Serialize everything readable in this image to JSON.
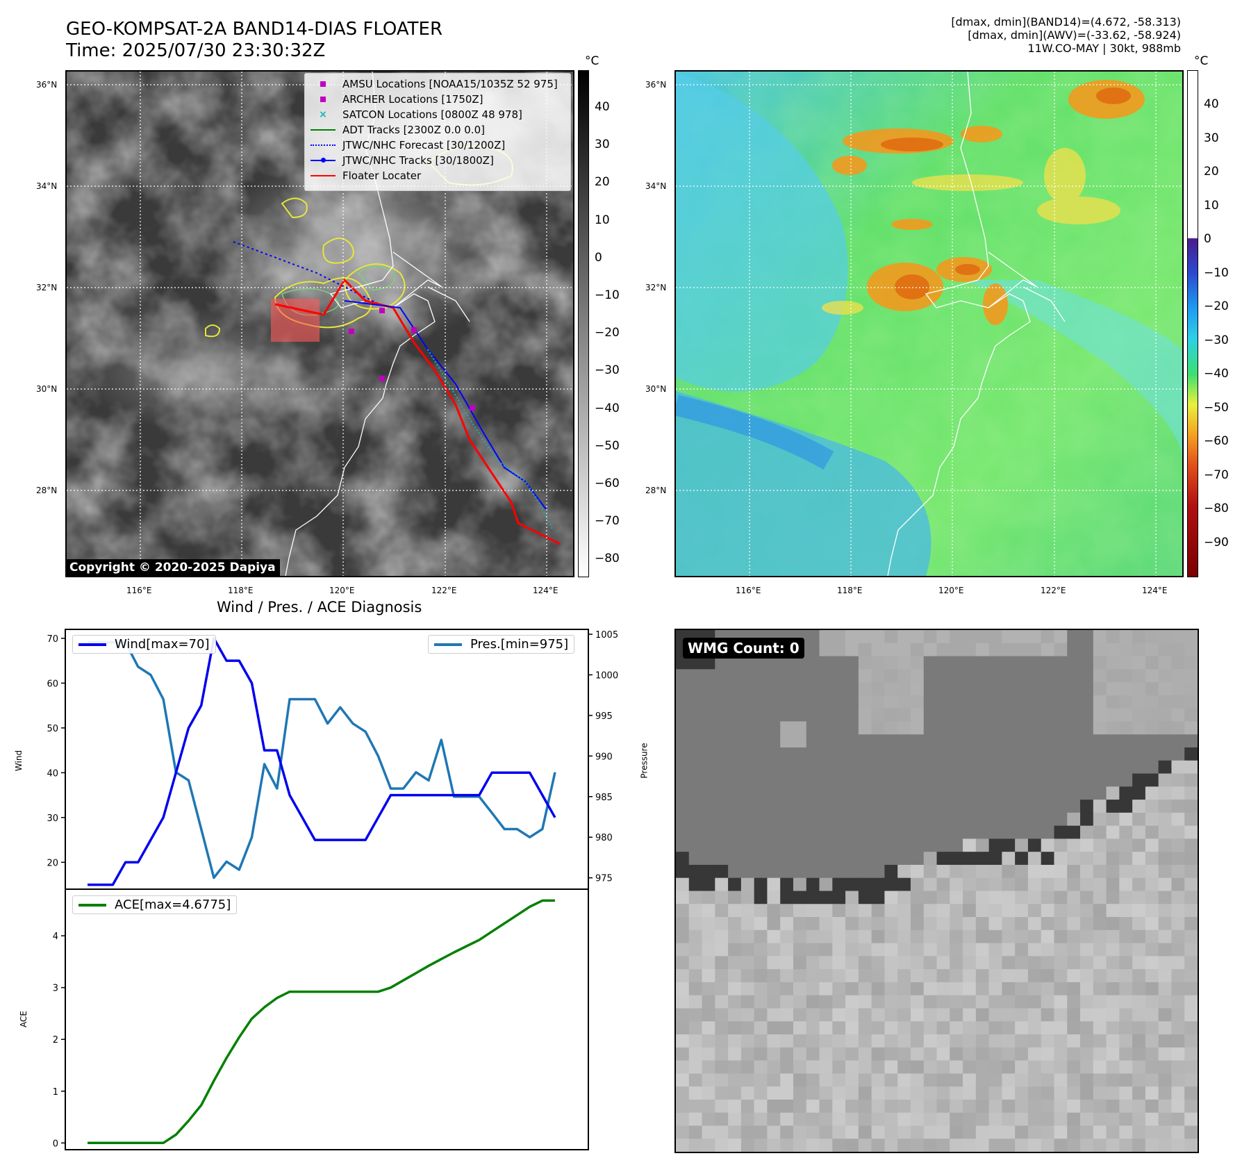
{
  "header": {
    "title_line1": "GEO-KOMPSAT-2A BAND14-DIAS FLOATER",
    "title_line2": "Time: 2025/07/30 23:30:32Z",
    "right_line1": "[dmax, dmin](BAND14)=(4.672, -58.313)",
    "right_line2": "[dmax, dmin](AWV)=(-33.62, -58.924)",
    "right_line3": "11W.CO-MAY | 30kt, 988mb"
  },
  "map_axes": {
    "lat_ticks": [
      "36°N",
      "34°N",
      "32°N",
      "30°N",
      "28°N"
    ],
    "lon_ticks": [
      "116°E",
      "118°E",
      "120°E",
      "122°E",
      "124°E"
    ]
  },
  "ir_panel": {
    "colorbar_unit": "°C",
    "colorbar_ticks": [
      "40",
      "30",
      "20",
      "10",
      "0",
      "−10",
      "−20",
      "−30",
      "−40",
      "−50",
      "−60",
      "−70",
      "−80"
    ],
    "copyright": "Copyright © 2020-2025 Dapiya",
    "legend": [
      {
        "label": "AMSU Locations [NOAA15/1035Z 52 975]",
        "kind": "square",
        "color": "#c000c0"
      },
      {
        "label": "ARCHER Locations [1750Z]",
        "kind": "square",
        "color": "#c000c0"
      },
      {
        "label": "SATCON Locations [0800Z 48 978]",
        "kind": "x",
        "color": "#1ab2b2"
      },
      {
        "label": "ADT Tracks [2300Z 0.0 0.0]",
        "kind": "line",
        "color": "#008000"
      },
      {
        "label": "JTWC/NHC Forecast [30/1200Z]",
        "kind": "dotted",
        "color": "#0000ff"
      },
      {
        "label": "JTWC/NHC Tracks [30/1800Z]",
        "kind": "dotline",
        "color": "#0000ff"
      },
      {
        "label": "Floater Locater",
        "kind": "line",
        "color": "#ff0000"
      }
    ]
  },
  "wv_panel": {
    "colorbar_unit": "°C",
    "colorbar_ticks": [
      "40",
      "30",
      "20",
      "10",
      "0",
      "−10",
      "−20",
      "−30",
      "−40",
      "−50",
      "−60",
      "−70",
      "−80",
      "−90"
    ]
  },
  "wmg_panel": {
    "label": "WMG Count: 0"
  },
  "chart_data": [
    {
      "type": "line",
      "title": "Wind / Pres. / ACE Diagnosis",
      "ylabel": "Wind",
      "y2label": "Pressure",
      "ylim": [
        14,
        72
      ],
      "y2lim": [
        973.6,
        1005.6
      ],
      "yticks": [
        20,
        30,
        40,
        50,
        60,
        70
      ],
      "y2ticks": [
        975,
        980,
        985,
        990,
        995,
        1000,
        1005
      ],
      "series": [
        {
          "name": "Wind[max=70]",
          "axis": "left",
          "color": "#0000ee",
          "values": [
            15,
            15,
            15,
            20,
            20,
            25,
            30,
            40,
            50,
            55,
            70,
            65,
            65,
            60,
            45,
            45,
            35,
            30,
            25,
            25,
            25,
            25,
            25,
            30,
            35,
            35,
            35,
            35,
            35,
            35,
            35,
            35,
            40,
            40,
            40,
            40,
            35,
            30
          ]
        },
        {
          "name": "Pres.[min=975]",
          "axis": "right",
          "color": "#1f77b4",
          "values": [
            1004,
            1004,
            1004,
            1004,
            1001,
            1000,
            997,
            988,
            987,
            981,
            975,
            977,
            976,
            980,
            989,
            986,
            997,
            997,
            997,
            994,
            996,
            994,
            993,
            990,
            986,
            986,
            988,
            987,
            992,
            985,
            985,
            985,
            983,
            981,
            981,
            980,
            981,
            988
          ]
        }
      ]
    },
    {
      "type": "line",
      "ylabel": "ACE",
      "ylim": [
        -0.13,
        4.9
      ],
      "yticks": [
        0,
        1,
        2,
        3,
        4
      ],
      "series": [
        {
          "name": "ACE[max=4.6775]",
          "color": "#008000",
          "values": [
            0,
            0,
            0,
            0,
            0,
            0,
            0,
            0.16,
            0.43,
            0.73,
            1.2,
            1.64,
            2.04,
            2.4,
            2.62,
            2.8,
            2.92,
            2.92,
            2.92,
            2.92,
            2.92,
            2.92,
            2.92,
            2.92,
            3.0,
            3.14,
            3.28,
            3.42,
            3.55,
            3.68,
            3.8,
            3.92,
            4.08,
            4.24,
            4.4,
            4.56,
            4.68,
            4.68
          ]
        }
      ]
    }
  ]
}
